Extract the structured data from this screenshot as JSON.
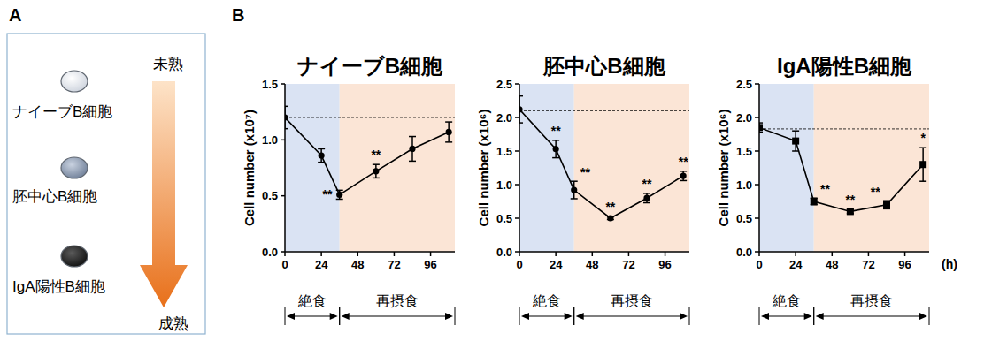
{
  "panel_a": {
    "letter": "A",
    "stages": [
      "ナイーブB細胞",
      "胚中心B細胞",
      "IgA陽性B細胞"
    ],
    "top_label": "未熟",
    "bottom_label": "成熟"
  },
  "panel_b_letter": "B",
  "chart_data": [
    {
      "type": "line",
      "title": "ナイーブB細胞",
      "y_label": "Cell number (x10⁷)",
      "x": [
        0,
        24,
        36,
        60,
        84,
        108
      ],
      "series": [
        {
          "color": "#000000",
          "marker": "circle",
          "values": [
            1.2,
            0.86,
            0.51,
            0.72,
            0.92,
            1.07
          ],
          "errors": [
            0.1,
            0.06,
            0.04,
            0.06,
            0.11,
            0.09
          ],
          "annotations": [
            null,
            null,
            "**",
            "**",
            null,
            null
          ]
        }
      ],
      "xlim": [
        0,
        112
      ],
      "xticks": [
        0,
        24,
        48,
        72,
        96
      ],
      "ylim": [
        0,
        1.5
      ],
      "yticks": [
        {
          "value": 0,
          "label": "0.0"
        },
        {
          "value": 0.5,
          "label": "0.5"
        },
        {
          "value": 1.0,
          "label": "1.0"
        },
        {
          "value": 1.5,
          "label": "1.5"
        }
      ],
      "baseline": 1.2,
      "regions": [
        {
          "label": "絶食",
          "start": 0,
          "end": 36,
          "color": "#dae3f3"
        },
        {
          "label": "再摂食",
          "start": 36,
          "end": 112,
          "color": "#fbe5d6"
        }
      ]
    },
    {
      "type": "line",
      "title": "胚中心B細胞",
      "y_label": "Cell number (x10⁶)",
      "x": [
        0,
        24,
        36,
        60,
        84,
        108
      ],
      "series": [
        {
          "color": "#000000",
          "marker": "circle",
          "values": [
            2.12,
            1.53,
            0.92,
            0.5,
            0.8,
            1.13
          ],
          "errors": [
            0.2,
            0.13,
            0.13,
            0.02,
            0.07,
            0.07
          ],
          "annotations": [
            null,
            "**",
            "**",
            "**",
            "**",
            "**"
          ]
        }
      ],
      "xlim": [
        0,
        112
      ],
      "xticks": [
        0,
        24,
        48,
        72,
        96
      ],
      "ylim": [
        0,
        2.5
      ],
      "yticks": [
        {
          "value": 0,
          "label": "0.0"
        },
        {
          "value": 0.5,
          "label": "0.5"
        },
        {
          "value": 1.0,
          "label": "1.0"
        },
        {
          "value": 1.5,
          "label": "1.5"
        },
        {
          "value": 2.0,
          "label": "2.0"
        },
        {
          "value": 2.5,
          "label": "2.5"
        }
      ],
      "baseline": 2.1,
      "regions": [
        {
          "label": "絶食",
          "start": 0,
          "end": 36,
          "color": "#dae3f3"
        },
        {
          "label": "再摂食",
          "start": 36,
          "end": 112,
          "color": "#fbe5d6"
        }
      ]
    },
    {
      "type": "line",
      "title": "IgA陽性B細胞",
      "y_label": "Cell number (x10⁶)",
      "x_unit": "(h)",
      "x": [
        0,
        24,
        36,
        60,
        84,
        108
      ],
      "series": [
        {
          "color": "#000000",
          "marker": "square",
          "values": [
            1.85,
            1.65,
            0.75,
            0.6,
            0.7,
            1.3
          ],
          "errors": [
            0.07,
            0.15,
            0.05,
            0.03,
            0.06,
            0.25
          ],
          "annotations": [
            null,
            null,
            "**",
            "**",
            "**",
            "*"
          ]
        }
      ],
      "xlim": [
        0,
        112
      ],
      "xticks": [
        0,
        24,
        48,
        72,
        96
      ],
      "ylim": [
        0,
        2.5
      ],
      "yticks": [
        {
          "value": 0,
          "label": "0.0"
        },
        {
          "value": 0.5,
          "label": "0.5"
        },
        {
          "value": 1.0,
          "label": "1.0"
        },
        {
          "value": 1.5,
          "label": "1.5"
        },
        {
          "value": 2.0,
          "label": "2.0"
        },
        {
          "value": 2.5,
          "label": "2.5"
        }
      ],
      "baseline": 1.83,
      "regions": [
        {
          "label": "絶食",
          "start": 0,
          "end": 36,
          "color": "#dae3f3"
        },
        {
          "label": "再摂食",
          "start": 36,
          "end": 112,
          "color": "#fbe5d6"
        }
      ]
    }
  ]
}
